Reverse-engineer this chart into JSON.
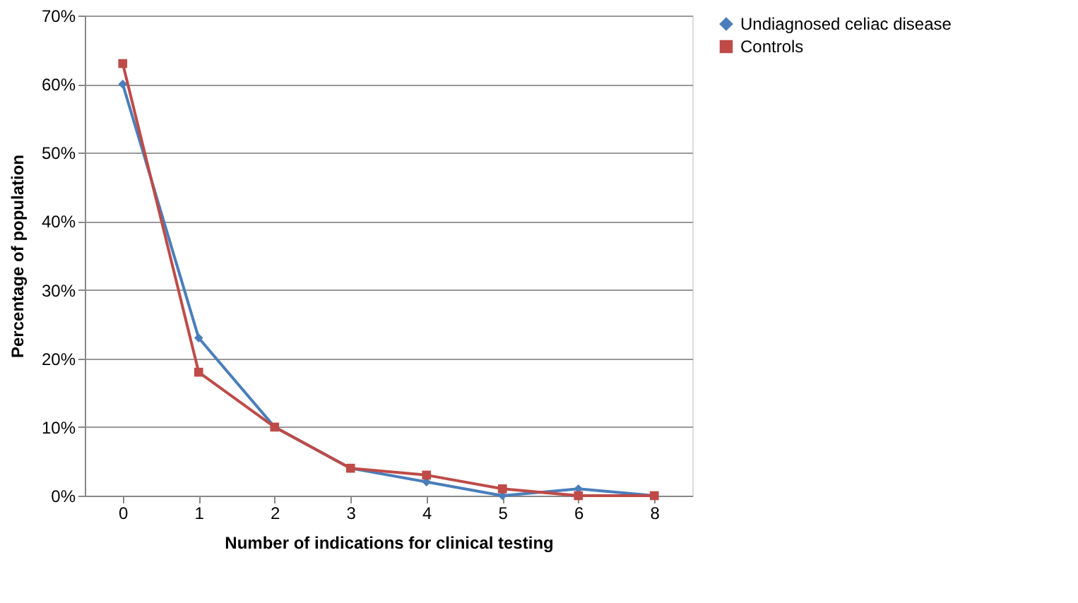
{
  "chart_data": {
    "type": "line",
    "xlabel": "Number of indications for clinical testing",
    "ylabel": "Percentage of population",
    "categories": [
      "0",
      "1",
      "2",
      "3",
      "4",
      "5",
      "6",
      "8"
    ],
    "series": [
      {
        "name": "Undiagnosed celiac disease",
        "color": "#4a7ebb",
        "marker": "diamond",
        "values": [
          60,
          23,
          10,
          4,
          2,
          0,
          1,
          0
        ]
      },
      {
        "name": "Controls",
        "color": "#be4b48",
        "marker": "square",
        "values": [
          63,
          18,
          10,
          4,
          3,
          1,
          0,
          0
        ]
      }
    ],
    "ylim": [
      0,
      70
    ],
    "yticks": [
      {
        "value": 0,
        "label": "0%"
      },
      {
        "value": 10,
        "label": "10%"
      },
      {
        "value": 20,
        "label": "20%"
      },
      {
        "value": 30,
        "label": "30%"
      },
      {
        "value": 40,
        "label": "40%"
      },
      {
        "value": 50,
        "label": "50%"
      },
      {
        "value": 60,
        "label": "60%"
      },
      {
        "value": 70,
        "label": "70%"
      }
    ],
    "grid": "y",
    "legend": "right",
    "line_style": "solid"
  }
}
